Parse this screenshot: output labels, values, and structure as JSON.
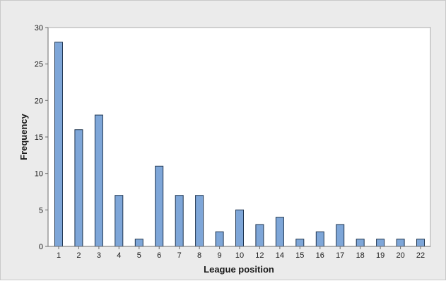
{
  "chart_data": {
    "type": "bar",
    "xlabel": "League position",
    "ylabel": "Frequency",
    "categories": [
      "1",
      "2",
      "3",
      "4",
      "5",
      "6",
      "7",
      "8",
      "9",
      "10",
      "12",
      "14",
      "15",
      "16",
      "17",
      "18",
      "19",
      "20",
      "22"
    ],
    "values": [
      28,
      16,
      18,
      7,
      1,
      11,
      7,
      7,
      2,
      5,
      3,
      4,
      1,
      2,
      3,
      1,
      1,
      1,
      1
    ],
    "ylim": [
      0,
      30
    ],
    "yticks": [
      0,
      5,
      10,
      15,
      20,
      25,
      30
    ],
    "grid": false,
    "colors": {
      "bar_fill": "#7ea6d8",
      "bar_stroke": "#1f3550",
      "background": "#ebebeb",
      "plot_background": "#ffffff"
    }
  }
}
